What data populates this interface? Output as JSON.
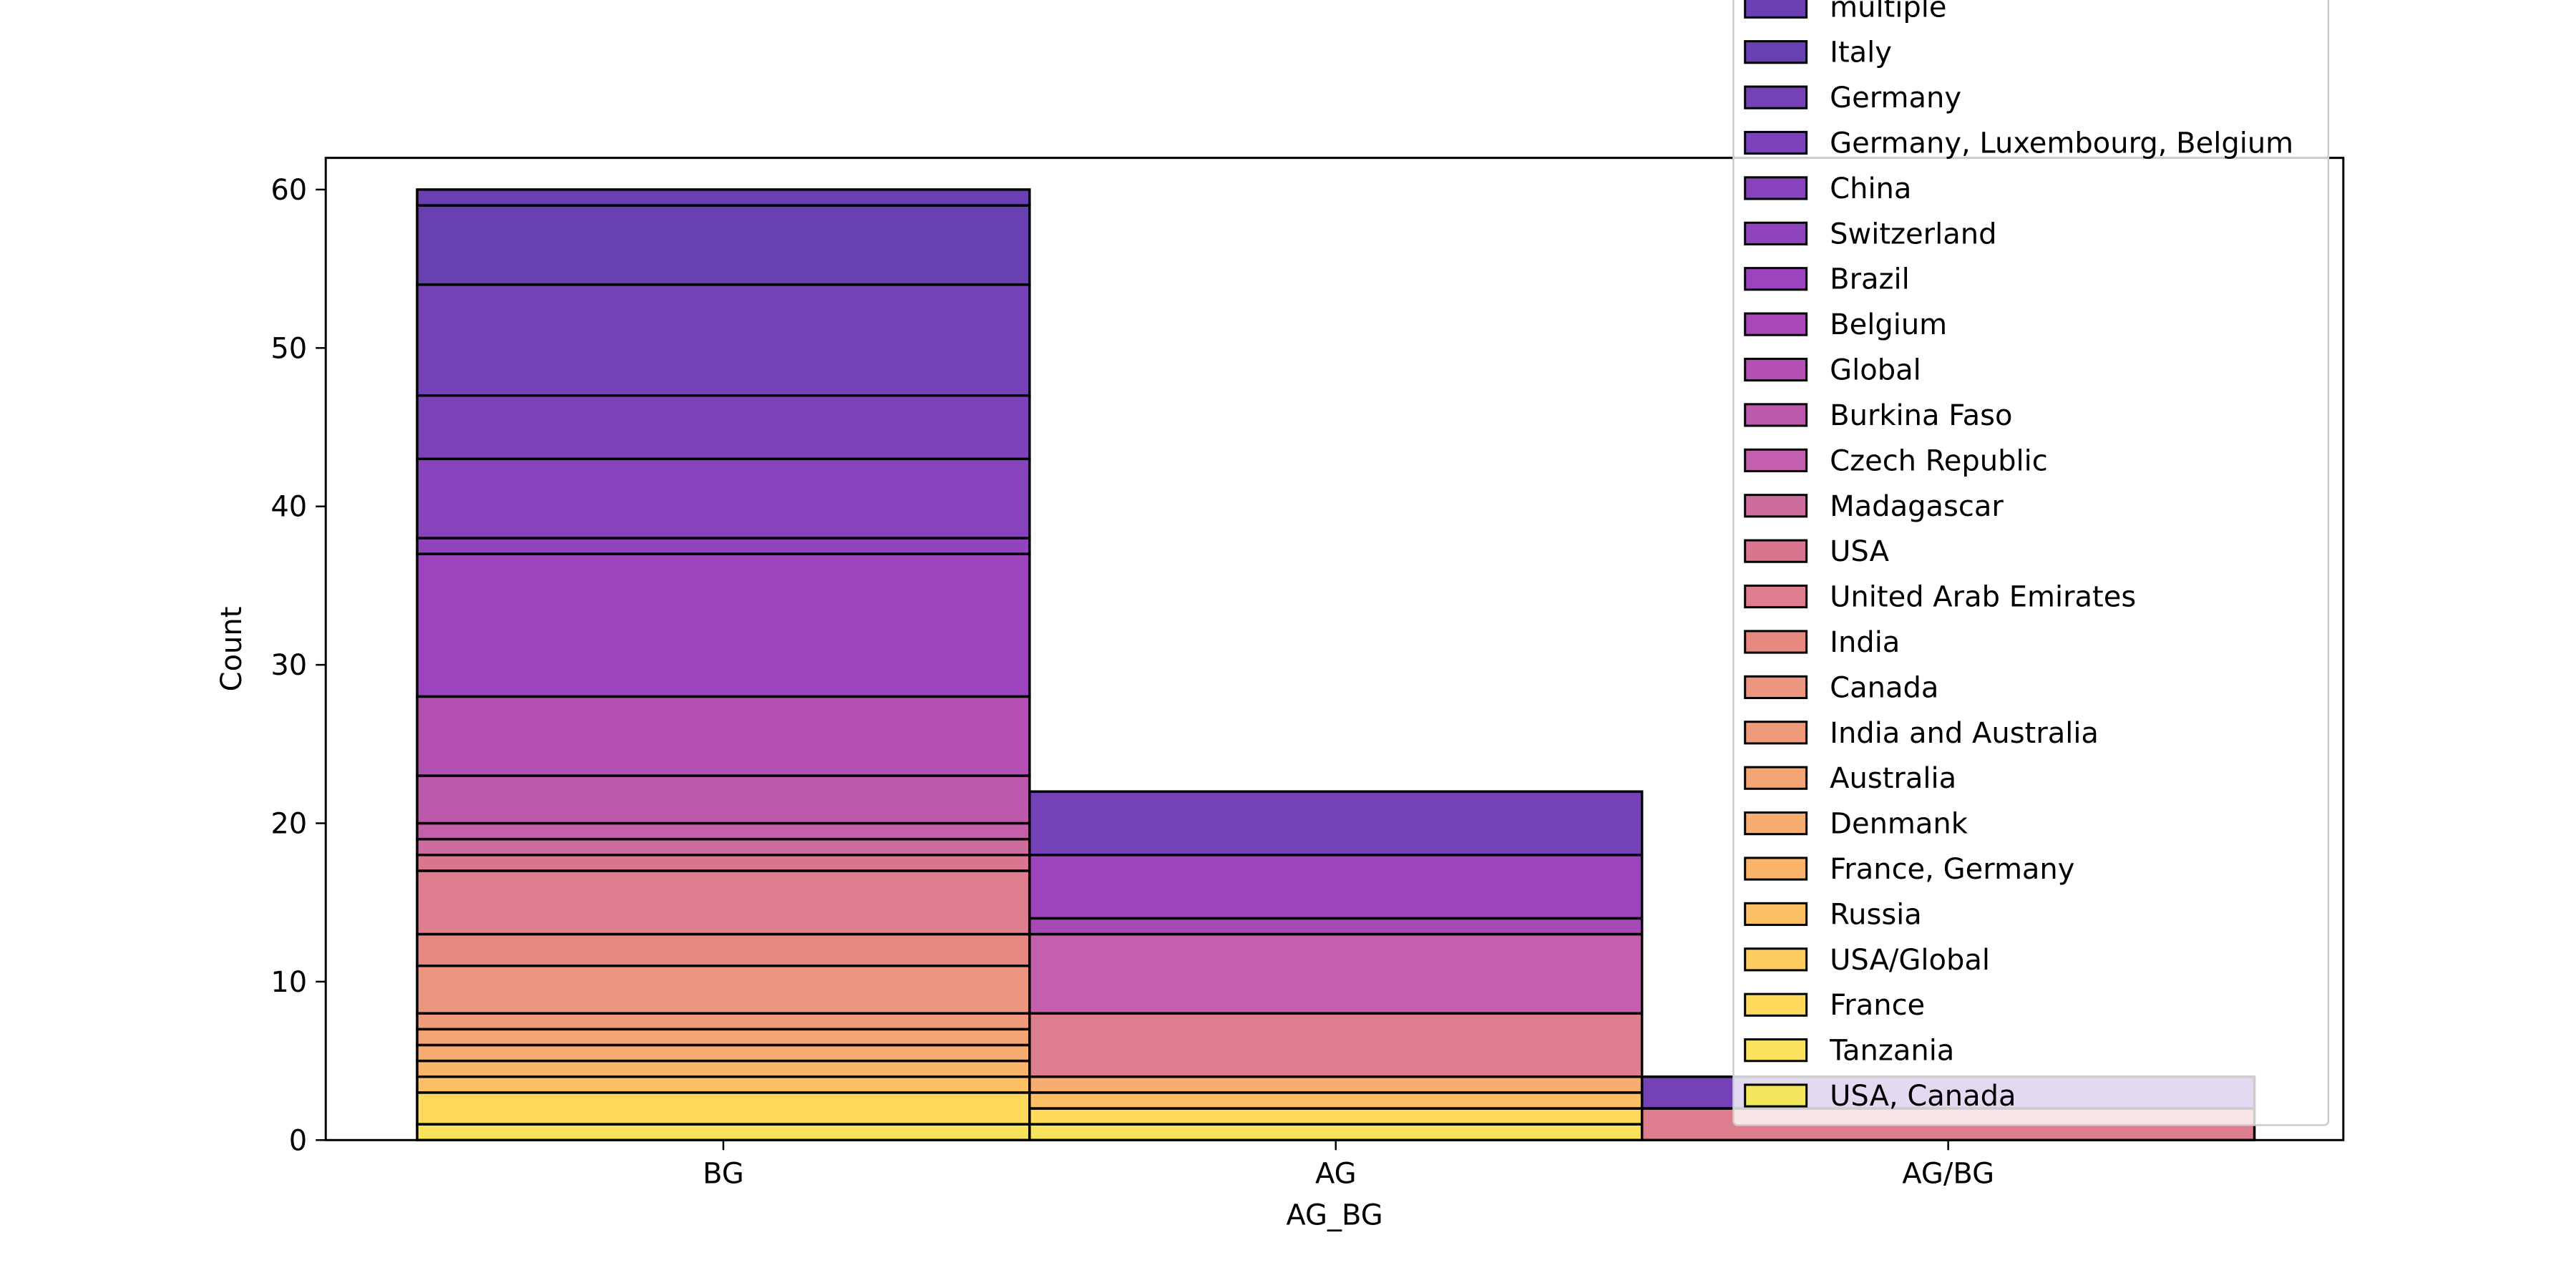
{
  "chart_data": {
    "type": "bar",
    "stacked": true,
    "xlabel": "AG_BG",
    "ylabel": "Count",
    "ylim": [
      0,
      62
    ],
    "yticks": [
      0,
      10,
      20,
      30,
      40,
      50,
      60
    ],
    "categories": [
      "BG",
      "AG",
      "AG/BG"
    ],
    "legend_position": "top-right, overlapping plot",
    "series": [
      {
        "name": "multiple",
        "color": "#6a3fb4",
        "values": [
          1,
          0,
          0
        ]
      },
      {
        "name": "Italy",
        "color": "#6840b2",
        "values": [
          5,
          0,
          0
        ]
      },
      {
        "name": "Germany",
        "color": "#7442b6",
        "values": [
          7,
          4,
          2
        ]
      },
      {
        "name": "Germany, Luxembourg, Belgium",
        "color": "#7c42ba",
        "values": [
          4,
          0,
          0
        ]
      },
      {
        "name": "China",
        "color": "#8643bc",
        "values": [
          5,
          0,
          0
        ]
      },
      {
        "name": "Switzerland",
        "color": "#9044bd",
        "values": [
          1,
          0,
          0
        ]
      },
      {
        "name": "Brazil",
        "color": "#9b44bd",
        "values": [
          9,
          4,
          0
        ]
      },
      {
        "name": "Belgium",
        "color": "#a747b8",
        "values": [
          0,
          1,
          0
        ]
      },
      {
        "name": "Global",
        "color": "#b44fb4",
        "values": [
          5,
          0,
          0
        ]
      },
      {
        "name": "Burkina Faso",
        "color": "#bd59ac",
        "values": [
          3,
          0,
          0
        ]
      },
      {
        "name": "Czech Republic",
        "color": "#c45fae",
        "values": [
          1,
          5,
          0
        ]
      },
      {
        "name": "Madagascar",
        "color": "#cf6c9e",
        "values": [
          1,
          0,
          0
        ]
      },
      {
        "name": "USA",
        "color": "#da7590",
        "values": [
          1,
          0,
          0
        ]
      },
      {
        "name": "United Arab Emirates",
        "color": "#de7d8d",
        "values": [
          4,
          4,
          2
        ]
      },
      {
        "name": "India",
        "color": "#e6887f",
        "values": [
          2,
          0,
          0
        ]
      },
      {
        "name": "Canada",
        "color": "#ec9680",
        "values": [
          3,
          0,
          0
        ]
      },
      {
        "name": "India and Australia",
        "color": "#f09a7c",
        "values": [
          1,
          0,
          0
        ]
      },
      {
        "name": "Australia",
        "color": "#f4a575",
        "values": [
          1,
          0,
          0
        ]
      },
      {
        "name": "Denmank",
        "color": "#f7ad6f",
        "values": [
          1,
          1,
          0
        ]
      },
      {
        "name": "France, Germany",
        "color": "#fab56b",
        "values": [
          1,
          0,
          0
        ]
      },
      {
        "name": "Russia",
        "color": "#fcbf66",
        "values": [
          1,
          1,
          0
        ]
      },
      {
        "name": "USA/Global",
        "color": "#fdcc60",
        "values": [
          0,
          0,
          0
        ]
      },
      {
        "name": "France",
        "color": "#fed95b",
        "values": [
          2,
          1,
          0
        ]
      },
      {
        "name": "Tanzania",
        "color": "#f9e35c",
        "values": [
          1,
          1,
          0
        ]
      },
      {
        "name": "USA, Canada",
        "color": "#f4e65c",
        "values": [
          0,
          0,
          0
        ]
      }
    ]
  }
}
